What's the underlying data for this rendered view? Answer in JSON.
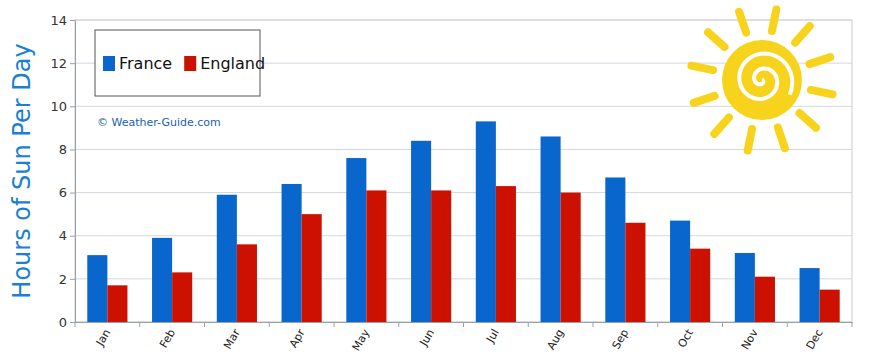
{
  "chart_data": {
    "type": "bar",
    "y_label": "Hours of Sun Per Day",
    "annotation": "© Weather-Guide.com",
    "categories": [
      "Jan",
      "Feb",
      "Mar",
      "Apr",
      "May",
      "Jun",
      "Jul",
      "Aug",
      "Sep",
      "Oct",
      "Nov",
      "Dec"
    ],
    "series": [
      {
        "name": "France",
        "color": "#0866cc",
        "values": [
          3.1,
          3.9,
          5.9,
          6.4,
          7.6,
          8.4,
          9.3,
          8.6,
          6.7,
          4.7,
          3.2,
          2.5
        ]
      },
      {
        "name": "England",
        "color": "#cc1100",
        "values": [
          1.7,
          2.3,
          3.6,
          5.0,
          6.1,
          6.1,
          6.3,
          6.0,
          4.6,
          3.4,
          2.1,
          1.5
        ]
      }
    ],
    "ylim": [
      0,
      14
    ],
    "yticks": [
      0,
      2,
      4,
      6,
      8,
      10,
      12,
      14
    ],
    "grid": true,
    "legend": "top-left"
  }
}
